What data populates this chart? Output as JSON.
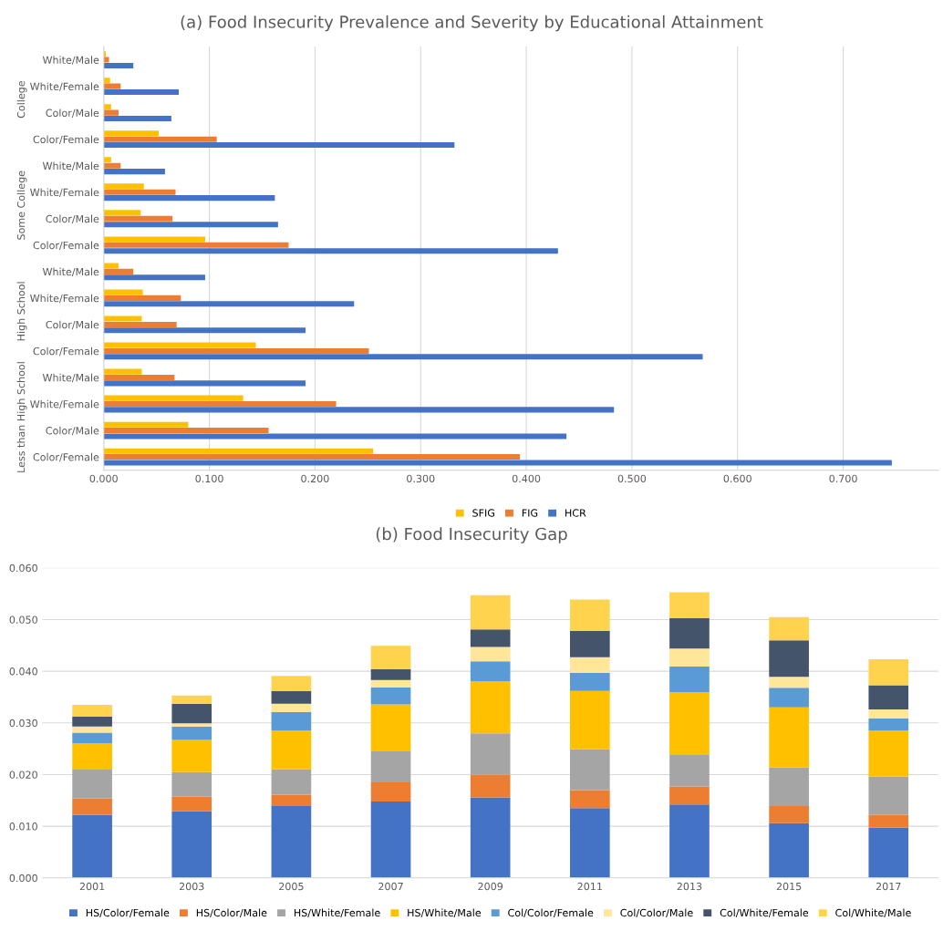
{
  "chart_data": [
    {
      "type": "bar",
      "orientation": "horizontal",
      "title": "(a) Food Insecurity Prevalence and Severity by Educational Attainment",
      "categories": [
        "White/Male",
        "White/Female",
        "Color/Male",
        "Color/Female",
        "White/Male",
        "White/Female",
        "Color/Male",
        "Color/Female",
        "White/Male",
        "White/Female",
        "Color/Male",
        "Color/Female",
        "White/Male",
        "White/Female",
        "Color/Male",
        "Color/Female"
      ],
      "series": [
        {
          "name": "SFIG",
          "color": "#ffc000",
          "values": [
            0.002,
            0.006,
            0.007,
            0.052,
            0.007,
            0.038,
            0.035,
            0.096,
            0.014,
            0.037,
            0.036,
            0.144,
            0.036,
            0.132,
            0.08,
            0.255
          ]
        },
        {
          "name": "FIG",
          "color": "#ed7d31",
          "values": [
            0.005,
            0.016,
            0.014,
            0.107,
            0.016,
            0.068,
            0.065,
            0.175,
            0.028,
            0.073,
            0.069,
            0.251,
            0.067,
            0.22,
            0.156,
            0.394
          ]
        },
        {
          "name": "HCR",
          "color": "#4472c4",
          "values": [
            0.028,
            0.071,
            0.064,
            0.332,
            0.058,
            0.162,
            0.165,
            0.43,
            0.096,
            0.237,
            0.191,
            0.567,
            0.191,
            0.483,
            0.438,
            0.746
          ]
        }
      ],
      "xlim": [
        0,
        0.79
      ],
      "xticks": [
        {
          "value": 0,
          "label": "0.000"
        },
        {
          "value": 0.1,
          "label": "0.100"
        },
        {
          "value": 0.2,
          "label": "0.200"
        },
        {
          "value": 0.3,
          "label": "0.300"
        },
        {
          "value": 0.4,
          "label": "0.400"
        },
        {
          "value": 0.5,
          "label": "0.500"
        },
        {
          "value": 0.6,
          "label": "0.600"
        },
        {
          "value": 0.7,
          "label": "0.700"
        }
      ],
      "annotations": [
        "College",
        "Some College",
        "High School",
        "Less than High School"
      ],
      "grid": "x",
      "legend": "bottom"
    },
    {
      "type": "bar",
      "stacked": true,
      "title": "(b) Food Insecurity Gap",
      "categories": [
        "2001",
        "2003",
        "2005",
        "2007",
        "2009",
        "2011",
        "2013",
        "2015",
        "2017"
      ],
      "series": [
        {
          "name": "HS/Color/Female",
          "color": "#4472c4",
          "values": [
            0.0122,
            0.0129,
            0.0139,
            0.0148,
            0.0156,
            0.0135,
            0.0142,
            0.0106,
            0.0097
          ]
        },
        {
          "name": "HS/Color/Male",
          "color": "#ed7d31",
          "values": [
            0.0032,
            0.0028,
            0.0022,
            0.0037,
            0.0044,
            0.0035,
            0.0035,
            0.0033,
            0.0025
          ]
        },
        {
          "name": "HS/White/Female",
          "color": "#a5a5a5",
          "values": [
            0.0057,
            0.0048,
            0.0049,
            0.006,
            0.008,
            0.0079,
            0.0062,
            0.0075,
            0.0074
          ]
        },
        {
          "name": "HS/White/Male",
          "color": "#ffc000",
          "values": [
            0.005,
            0.0062,
            0.0075,
            0.0091,
            0.0101,
            0.0113,
            0.012,
            0.0116,
            0.0089
          ]
        },
        {
          "name": "Col/Color/Female",
          "color": "#5b9bd5",
          "values": [
            0.002,
            0.0026,
            0.0036,
            0.0033,
            0.0038,
            0.0035,
            0.005,
            0.0038,
            0.0024
          ]
        },
        {
          "name": "Col/Color/Male",
          "color": "#ffe699",
          "values": [
            0.0012,
            0.0006,
            0.0016,
            0.0014,
            0.0028,
            0.003,
            0.0035,
            0.0021,
            0.0017
          ]
        },
        {
          "name": "Col/White/Female",
          "color": "#44546a",
          "values": [
            0.0019,
            0.0038,
            0.0025,
            0.0021,
            0.0034,
            0.0051,
            0.0059,
            0.0071,
            0.0047
          ]
        },
        {
          "name": "Col/White/Male",
          "color": "#ffd34d",
          "values": [
            0.0023,
            0.0016,
            0.0029,
            0.0045,
            0.0066,
            0.0061,
            0.005,
            0.0045,
            0.005
          ]
        }
      ],
      "ylim": [
        0,
        0.06
      ],
      "yticks": [
        {
          "value": 0,
          "label": "0.000"
        },
        {
          "value": 0.01,
          "label": "0.010"
        },
        {
          "value": 0.02,
          "label": "0.020"
        },
        {
          "value": 0.03,
          "label": "0.030"
        },
        {
          "value": 0.04,
          "label": "0.040"
        },
        {
          "value": 0.05,
          "label": "0.050"
        },
        {
          "value": 0.06,
          "label": "0.060"
        }
      ],
      "grid": "y",
      "legend": "bottom"
    }
  ]
}
